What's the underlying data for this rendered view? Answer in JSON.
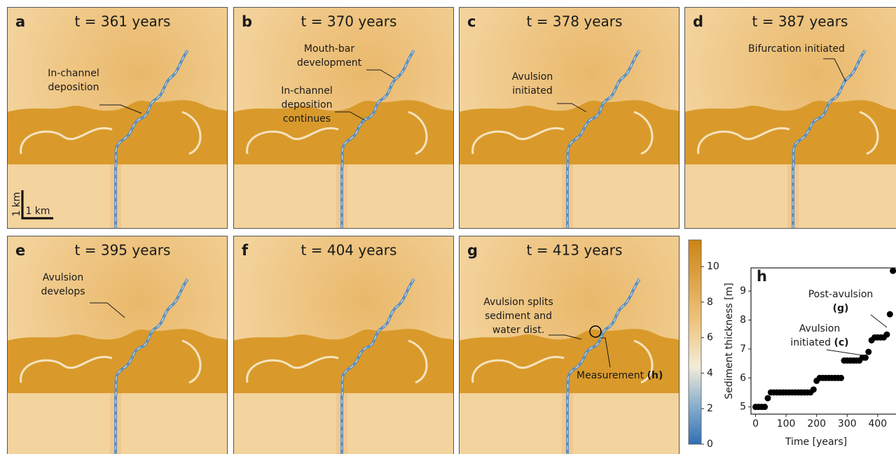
{
  "panels": [
    {
      "letter": "a",
      "title": "t = 361 years",
      "annotations": [
        {
          "lines": [
            "In-channel",
            "deposition"
          ]
        }
      ],
      "scale_bar": {
        "vertical": "1 km",
        "horizontal": "1 km"
      }
    },
    {
      "letter": "b",
      "title": "t = 370 years",
      "annotations": [
        {
          "lines": [
            "Mouth-bar",
            "development"
          ]
        },
        {
          "lines": [
            "In-channel",
            "deposition",
            "continues"
          ]
        }
      ]
    },
    {
      "letter": "c",
      "title": "t = 378 years",
      "annotations": [
        {
          "lines": [
            "Avulsion",
            "initiated"
          ]
        }
      ]
    },
    {
      "letter": "d",
      "title": "t = 387 years",
      "annotations": [
        {
          "lines": [
            "Bifurcation initiated"
          ]
        }
      ]
    },
    {
      "letter": "e",
      "title": "t = 395 years",
      "annotations": [
        {
          "lines": [
            "Avulsion",
            "develops"
          ]
        }
      ]
    },
    {
      "letter": "f",
      "title": "t = 404 years",
      "annotations": []
    },
    {
      "letter": "g",
      "title": "t = 413 years",
      "annotations": [
        {
          "lines": [
            "Avulsion splits",
            "sediment and",
            "water dist."
          ]
        },
        {
          "lines": [
            "Measurement"
          ],
          "ref": "(h)"
        }
      ]
    }
  ],
  "colorbar": {
    "lim": [
      0,
      11.5
    ],
    "ticks": [
      0,
      2,
      4,
      6,
      8,
      10
    ]
  },
  "chart_data": {
    "type": "scatter",
    "title": "h",
    "x_label": "Time [years]",
    "y_label": "Sediment thickness [m]",
    "x": [
      0,
      10,
      20,
      30,
      40,
      50,
      60,
      70,
      80,
      90,
      100,
      110,
      120,
      130,
      140,
      150,
      160,
      170,
      180,
      190,
      200,
      210,
      220,
      230,
      240,
      250,
      260,
      270,
      280,
      290,
      300,
      310,
      320,
      330,
      340,
      350,
      360,
      370,
      380,
      390,
      400,
      410,
      420,
      430,
      440,
      450
    ],
    "values": [
      5.0,
      5.0,
      5.0,
      5.0,
      5.3,
      5.5,
      5.5,
      5.5,
      5.5,
      5.5,
      5.5,
      5.5,
      5.5,
      5.5,
      5.5,
      5.5,
      5.5,
      5.5,
      5.5,
      5.6,
      5.9,
      6.0,
      6.0,
      6.0,
      6.0,
      6.0,
      6.0,
      6.0,
      6.0,
      6.6,
      6.6,
      6.6,
      6.6,
      6.6,
      6.6,
      6.7,
      6.7,
      6.9,
      7.3,
      7.4,
      7.4,
      7.4,
      7.4,
      7.5,
      8.2,
      9.7
    ],
    "color": "#000000",
    "xlim": [
      -15,
      460
    ],
    "ylim": [
      4.75,
      9.8
    ],
    "xticks": [
      0,
      100,
      200,
      300,
      400
    ],
    "yticks": [
      5,
      6,
      7,
      8,
      9
    ],
    "annotations": [
      {
        "lines": [
          "Post-avulsion"
        ],
        "ref": "(g)"
      },
      {
        "lines": [
          "Avulsion",
          "initiated"
        ],
        "ref": "(c)"
      }
    ]
  }
}
